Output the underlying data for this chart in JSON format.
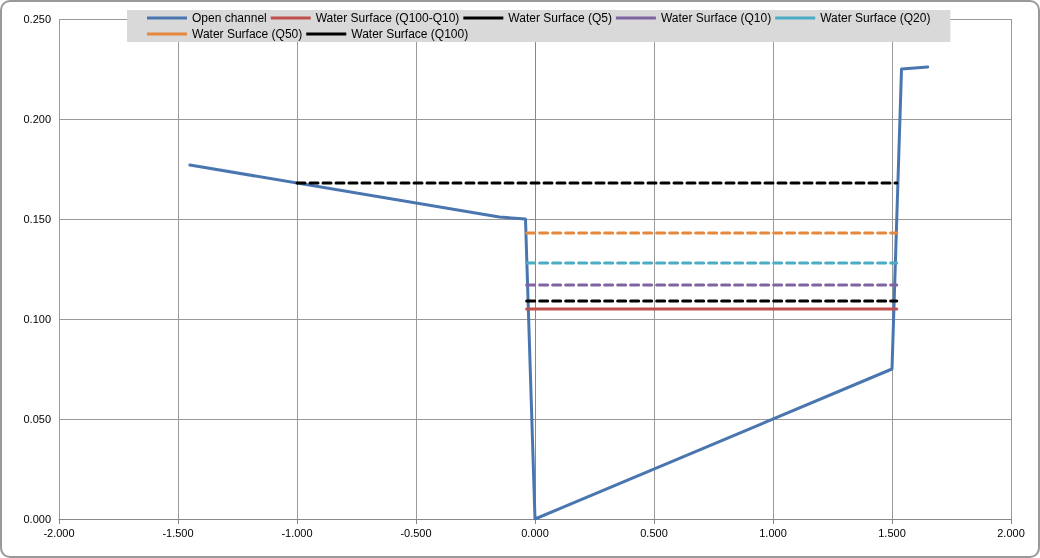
{
  "chart_data": {
    "type": "line",
    "grid": true,
    "legend": "top",
    "line_style": "solid",
    "marker": "none",
    "xlim": [
      -2,
      2
    ],
    "ylim": [
      0,
      0.25
    ],
    "xticks": [
      {
        "value": -2,
        "label": "-2.000"
      },
      {
        "value": -1.5,
        "label": "-1.500"
      },
      {
        "value": -1,
        "label": "-1.000"
      },
      {
        "value": -0.5,
        "label": "-0.500"
      },
      {
        "value": 0,
        "label": "0.000"
      },
      {
        "value": 0.5,
        "label": "0.500"
      },
      {
        "value": 1,
        "label": "1.000"
      },
      {
        "value": 1.5,
        "label": "1.500"
      },
      {
        "value": 2,
        "label": "2.000"
      }
    ],
    "yticks": [
      {
        "value": 0,
        "label": "0.000"
      },
      {
        "value": 0.05,
        "label": "0.050"
      },
      {
        "value": 0.1,
        "label": "0.100"
      },
      {
        "value": 0.15,
        "label": "0.150"
      },
      {
        "value": 0.2,
        "label": "0.200"
      },
      {
        "value": 0.25,
        "label": "0.250"
      }
    ],
    "series": [
      {
        "name": "Open channel",
        "color": "#4a76b0",
        "x": [
          -1.45,
          -0.15,
          -0.04,
          0,
          1.5,
          1.54,
          1.65
        ],
        "values": [
          0.177,
          0.151,
          0.15,
          0,
          0.075,
          0.225,
          0.226
        ]
      },
      {
        "name": "Water Surface (Q100-Q10)",
        "color": "#c0504d",
        "x": [
          -0.035,
          1.52
        ],
        "values": [
          0.105,
          0.105
        ]
      },
      {
        "name": "Water Surface (Q5)",
        "color": "#000000",
        "line_style": "dashed",
        "x": [
          -0.035,
          1.52
        ],
        "values": [
          0.109,
          0.109
        ]
      },
      {
        "name": "Water Surface (Q10)",
        "color": "#8064a2",
        "line_style": "dashed",
        "x": [
          -0.035,
          1.52
        ],
        "values": [
          0.117,
          0.117
        ]
      },
      {
        "name": "Water Surface (Q20)",
        "color": "#4bacc6",
        "line_style": "dashed",
        "x": [
          -0.035,
          1.52
        ],
        "values": [
          0.128,
          0.128
        ]
      },
      {
        "name": "Water Surface (Q50)",
        "color": "#e6883c",
        "line_style": "dashed",
        "x": [
          -0.035,
          1.52
        ],
        "values": [
          0.143,
          0.143
        ]
      },
      {
        "name": "Water Surface (Q100)",
        "color": "#000000",
        "line_style": "dashed",
        "x": [
          -1,
          1.52
        ],
        "values": [
          0.168,
          0.168
        ]
      }
    ]
  }
}
